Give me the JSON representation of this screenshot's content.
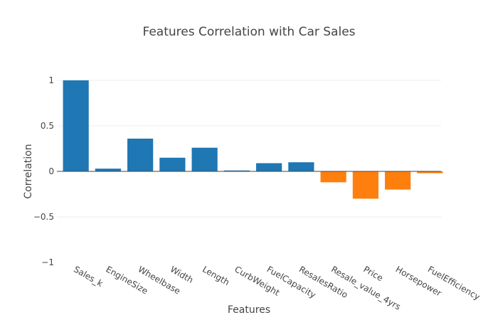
{
  "chart_data": {
    "type": "bar",
    "title": "Features Correlation with Car Sales",
    "xlabel": "Features",
    "ylabel": "Correlation",
    "categories": [
      "Sales_k",
      "EngineSize",
      "Wheelbase",
      "Width",
      "Length",
      "CurbWeight",
      "FuelCapacity",
      "ResalesRatio",
      "Resale_value_4yrs",
      "Price",
      "Horsepower",
      "FuelEfficiency"
    ],
    "values": [
      1.0,
      0.03,
      0.36,
      0.15,
      0.26,
      0.01,
      0.09,
      0.1,
      -0.12,
      -0.3,
      -0.2,
      -0.02
    ],
    "yticks": [
      1,
      0.5,
      0,
      -0.5,
      -1
    ],
    "ytick_labels": [
      "1",
      "0.5",
      "0",
      "−0.5",
      "−1"
    ],
    "ylim": [
      -1,
      1
    ],
    "grid": true,
    "legend": "none",
    "colors": {
      "positive": "#1f77b4",
      "negative": "#ff7f0e"
    }
  }
}
